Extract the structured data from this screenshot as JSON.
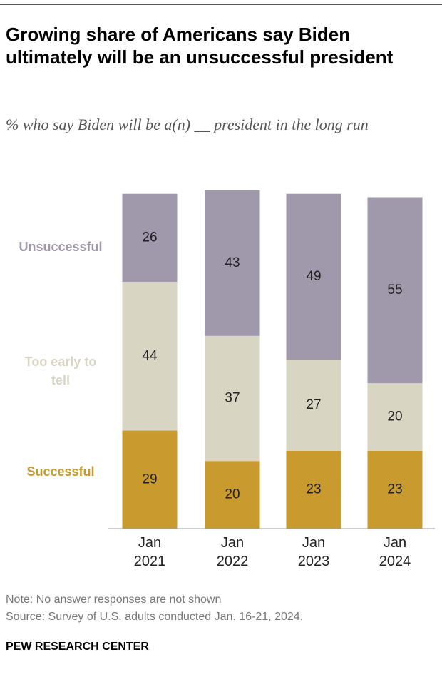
{
  "chart_data": {
    "type": "stacked_bar",
    "title": "Growing share of Americans say Biden ultimately will be an unsuccessful president",
    "subtitle": "% who say Biden will be a(n) __ president in the long run",
    "categories": [
      "Jan 2021",
      "Jan 2022",
      "Jan 2023",
      "Jan 2024"
    ],
    "series": [
      {
        "name": "Successful",
        "color": "#c99a2e",
        "values": [
          29,
          20,
          23,
          23
        ]
      },
      {
        "name": "Too early to tell",
        "color": "#d9d5c3",
        "values": [
          44,
          37,
          27,
          20
        ]
      },
      {
        "name": "Unsuccessful",
        "color": "#a098ab",
        "values": [
          26,
          43,
          49,
          55
        ]
      }
    ],
    "note": "Note: No answer responses are not shown",
    "source": "Source: Survey of U.S. adults conducted Jan. 16-21, 2024.",
    "footer": "PEW RESEARCH CENTER"
  }
}
